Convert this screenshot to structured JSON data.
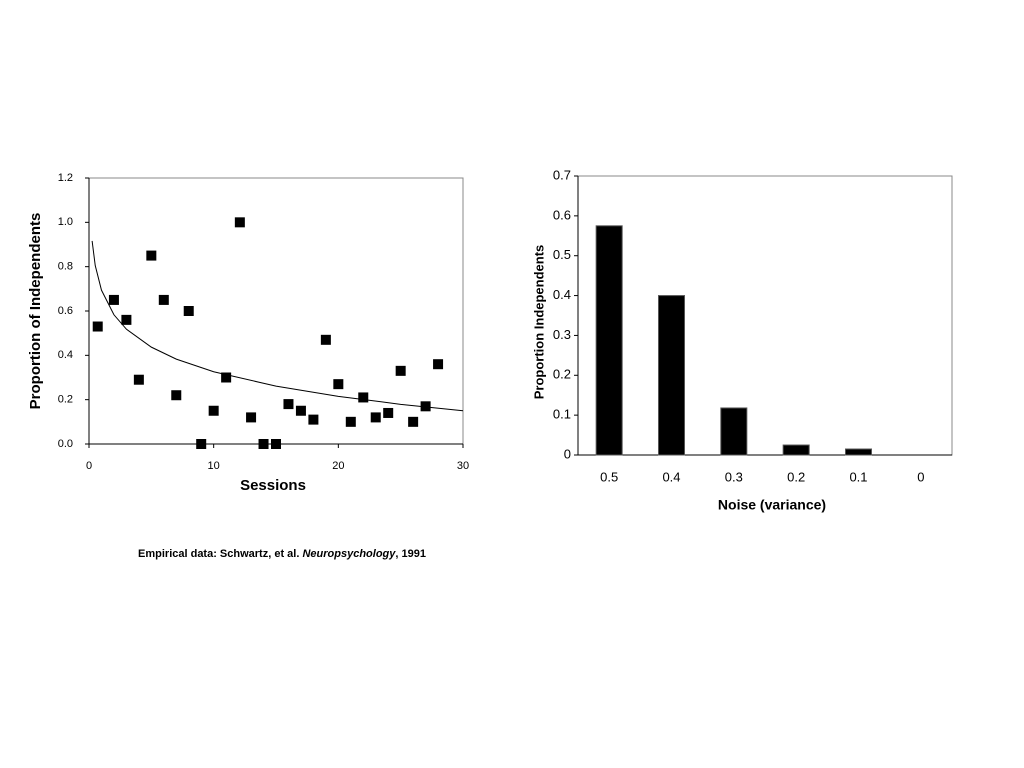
{
  "chart_data": [
    {
      "type": "scatter",
      "x_label": "Sessions",
      "y_label": "Proportion of Independents",
      "xlim": [
        0,
        30
      ],
      "xticks": [
        0,
        10,
        20,
        30
      ],
      "ylim": [
        0,
        1.2
      ],
      "yticks": [
        {
          "value": 0,
          "label": "0.0"
        },
        0.2,
        0.4,
        0.6,
        0.8,
        {
          "value": 1,
          "label": "1.0"
        },
        1.2
      ],
      "grid": false,
      "series": [
        {
          "kind": "scatter",
          "color": "#000000",
          "x": [
            0.7,
            2,
            3,
            4,
            5,
            6,
            7,
            8,
            9,
            10,
            11,
            12.1,
            13,
            14,
            15,
            16,
            17,
            18,
            19,
            20,
            21,
            22,
            23,
            24,
            25,
            26,
            27,
            28
          ],
          "values": [
            0.53,
            0.65,
            0.56,
            0.29,
            0.85,
            0.65,
            0.22,
            0.6,
            0.0,
            0.15,
            0.3,
            1.0,
            0.12,
            0.0,
            0.0,
            0.18,
            0.15,
            0.11,
            0.47,
            0.27,
            0.1,
            0.21,
            0.12,
            0.14,
            0.33,
            0.1,
            0.17,
            0.36
          ]
        },
        {
          "kind": "line",
          "color": "#000000",
          "x": [
            0.25,
            0.5,
            1,
            2,
            3,
            5,
            7,
            10,
            15,
            20,
            25,
            30
          ],
          "values": [
            0.916,
            0.805,
            0.694,
            0.583,
            0.518,
            0.437,
            0.383,
            0.326,
            0.261,
            0.215,
            0.179,
            0.15
          ]
        }
      ]
    },
    {
      "type": "bar",
      "x_label": "Noise (variance)",
      "y_label": "Proportion Independents",
      "categories": [
        "0.5",
        "0.4",
        "0.3",
        "0.2",
        "0.1",
        "0"
      ],
      "values": [
        0.575,
        0.4,
        0.118,
        0.025,
        0.015,
        0
      ],
      "color": "#000000",
      "ylim": [
        0,
        0.7
      ],
      "yticks": [
        0,
        0.1,
        0.2,
        0.3,
        0.4,
        0.5,
        0.6,
        0.7
      ],
      "grid": false
    }
  ],
  "caption": {
    "text": "Empirical data: Schwartz, et al.",
    "journal": "Neuropsychology",
    "year": ", 1991"
  }
}
